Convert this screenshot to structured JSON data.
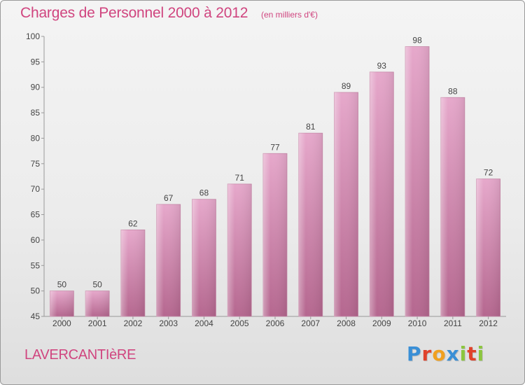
{
  "header": {
    "title": "Charges de Personnel 2000 à 2012",
    "subtitle": "(en milliers d'€)"
  },
  "footer": {
    "commune": "LAVERCANTIèRE",
    "logo_letters": [
      "P",
      "r",
      "o",
      "x",
      "i",
      "t",
      "i"
    ],
    "logo_colors": [
      "#3a8fd6",
      "#e0422b",
      "#f0a020",
      "#3a8fd6",
      "#8cc63f",
      "#e0422b",
      "#8cc63f"
    ]
  },
  "colors": {
    "bar": "#d989b4",
    "text_accent": "#d0457f"
  },
  "chart_data": {
    "type": "bar",
    "title": "Charges de Personnel 2000 à 2012",
    "subtitle": "(en milliers d'€)",
    "categories": [
      "2000",
      "2001",
      "2002",
      "2003",
      "2004",
      "2005",
      "2006",
      "2007",
      "2008",
      "2009",
      "2010",
      "2011",
      "2012"
    ],
    "values": [
      50,
      50,
      62,
      67,
      68,
      71,
      77,
      81,
      89,
      93,
      98,
      88,
      72
    ],
    "ylim": [
      45,
      100
    ],
    "yticks": [
      45,
      50,
      55,
      60,
      65,
      70,
      75,
      80,
      85,
      90,
      95,
      100
    ],
    "grid": false,
    "xlabel": "",
    "ylabel": ""
  }
}
